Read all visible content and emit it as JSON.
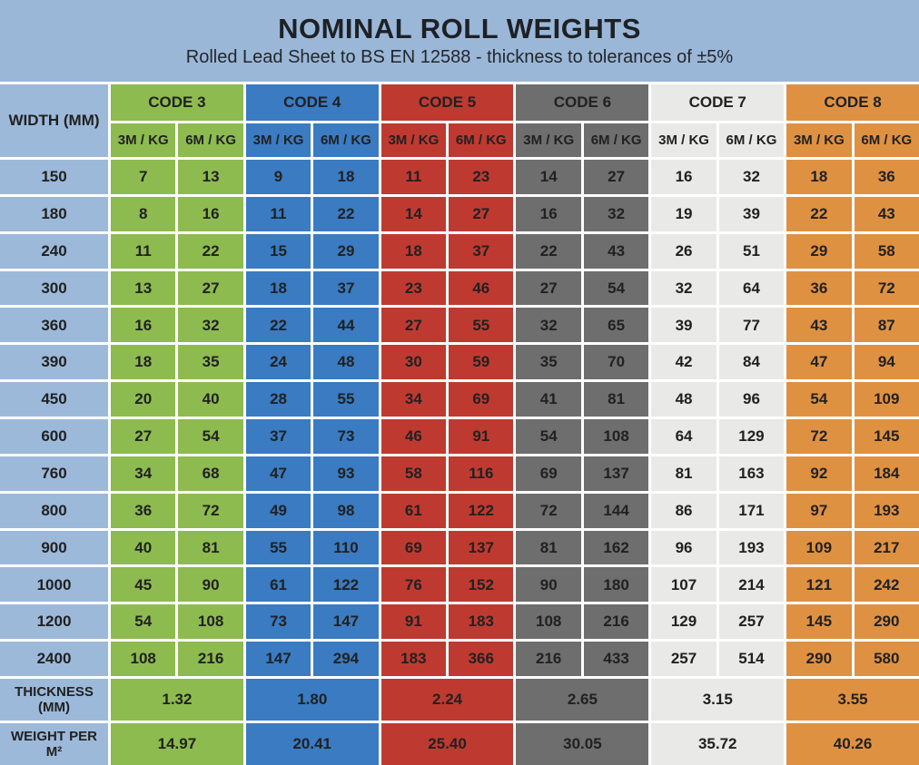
{
  "title": "NOMINAL ROLL WEIGHTS",
  "subtitle": "Rolled Lead Sheet to BS EN 12588 - thickness to tolerances of ±5%",
  "colors": {
    "title_band": "#9BB7D8",
    "width_column": "#9CB9D9",
    "grid_lines": "#FFFFFF",
    "text": "#212121"
  },
  "chart_data": {
    "type": "table",
    "width_header": "WIDTH (MM)",
    "sub_headers": [
      "3M / KG",
      "6M / KG"
    ],
    "codes": [
      {
        "label": "CODE 3",
        "color": "#8DBB4F"
      },
      {
        "label": "CODE 4",
        "color": "#3A7BC2"
      },
      {
        "label": "CODE 5",
        "color": "#BE3A31"
      },
      {
        "label": "CODE 6",
        "color": "#6E6E6E"
      },
      {
        "label": "CODE 7",
        "color": "#E9E9E8"
      },
      {
        "label": "CODE 8",
        "color": "#DF9142"
      }
    ],
    "widths": [
      "150",
      "180",
      "240",
      "300",
      "360",
      "390",
      "450",
      "600",
      "760",
      "800",
      "900",
      "1000",
      "1200",
      "2400"
    ],
    "rows": [
      [
        "7",
        "13",
        "9",
        "18",
        "11",
        "23",
        "14",
        "27",
        "16",
        "32",
        "18",
        "36"
      ],
      [
        "8",
        "16",
        "11",
        "22",
        "14",
        "27",
        "16",
        "32",
        "19",
        "39",
        "22",
        "43"
      ],
      [
        "11",
        "22",
        "15",
        "29",
        "18",
        "37",
        "22",
        "43",
        "26",
        "51",
        "29",
        "58"
      ],
      [
        "13",
        "27",
        "18",
        "37",
        "23",
        "46",
        "27",
        "54",
        "32",
        "64",
        "36",
        "72"
      ],
      [
        "16",
        "32",
        "22",
        "44",
        "27",
        "55",
        "32",
        "65",
        "39",
        "77",
        "43",
        "87"
      ],
      [
        "18",
        "35",
        "24",
        "48",
        "30",
        "59",
        "35",
        "70",
        "42",
        "84",
        "47",
        "94"
      ],
      [
        "20",
        "40",
        "28",
        "55",
        "34",
        "69",
        "41",
        "81",
        "48",
        "96",
        "54",
        "109"
      ],
      [
        "27",
        "54",
        "37",
        "73",
        "46",
        "91",
        "54",
        "108",
        "64",
        "129",
        "72",
        "145"
      ],
      [
        "34",
        "68",
        "47",
        "93",
        "58",
        "116",
        "69",
        "137",
        "81",
        "163",
        "92",
        "184"
      ],
      [
        "36",
        "72",
        "49",
        "98",
        "61",
        "122",
        "72",
        "144",
        "86",
        "171",
        "97",
        "193"
      ],
      [
        "40",
        "81",
        "55",
        "110",
        "69",
        "137",
        "81",
        "162",
        "96",
        "193",
        "109",
        "217"
      ],
      [
        "45",
        "90",
        "61",
        "122",
        "76",
        "152",
        "90",
        "180",
        "107",
        "214",
        "121",
        "242"
      ],
      [
        "54",
        "108",
        "73",
        "147",
        "91",
        "183",
        "108",
        "216",
        "129",
        "257",
        "145",
        "290"
      ],
      [
        "108",
        "216",
        "147",
        "294",
        "183",
        "366",
        "216",
        "433",
        "257",
        "514",
        "290",
        "580"
      ]
    ],
    "thickness_label": "THICKNESS (MM)",
    "thickness": [
      "1.32",
      "1.80",
      "2.24",
      "2.65",
      "3.15",
      "3.55"
    ],
    "weight_label": "WEIGHT PER M²",
    "weight": [
      "14.97",
      "20.41",
      "25.40",
      "30.05",
      "35.72",
      "40.26"
    ]
  }
}
